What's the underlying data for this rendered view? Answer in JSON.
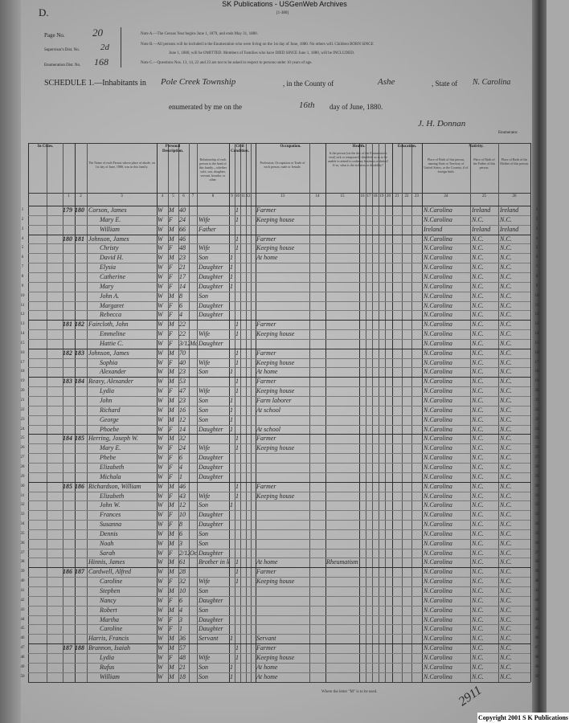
{
  "watermark": "SK Publications - USGenWeb Archives",
  "sheet_letter": "D.",
  "sheet_tag": "[1-380]",
  "header": {
    "page_label": "Page No.",
    "page_value": "20",
    "supervisor_label": "Supervisor's Dist. No.",
    "supervisor_value": "2d",
    "enumeration_label": "Enumeration Dist. No.",
    "enumeration_value": "168",
    "notes": [
      "Note A.—The Census Year begins June 1, 1879, and ends May 31, 1880.",
      "Note B.—All persons will be included in the Enumeration who were living on the 1st day of June, 1880. No others will. Children BORN SINCE",
      "June 1, 1880, will be OMITTED. Members of Families who have DIED SINCE June 1, 1880, will be INCLUDED.",
      "Note C.—Questions Nos. 13, 14, 22 and 23 are not to be asked in respect to persons under 10 years of age."
    ],
    "schedule_label": "SCHEDULE 1.—Inhabitants in",
    "township": "Pole Creek Township",
    "county_label": ", in the County of",
    "county": "Ashe",
    "state_label": ", State of",
    "state": "N. Carolina",
    "enumerated_label": "enumerated by me on the",
    "day": "16th",
    "month_label": "day of June, 1880.",
    "signature": "J. H. Donnan",
    "enumerator_label": "Enumerator."
  },
  "column_groups": [
    "In Cities.",
    "Personal Description.",
    "Civil Condition.",
    "Occupation.",
    "Health.",
    "Education.",
    "Nativity."
  ],
  "column_numbers": [
    "1",
    "2",
    "3",
    "4",
    "5",
    "6",
    "7",
    "8",
    "9",
    "10",
    "11",
    "12",
    "13",
    "14",
    "15",
    "16",
    "17",
    "18",
    "19",
    "20",
    "21",
    "22",
    "23",
    "24",
    "25",
    "26"
  ],
  "column_headers": {
    "name": "The Name of each Person whose place of abode, on 1st day of June, 1880, was in this family.",
    "relationship": "Relationship of each person to the head of this family—whether wife, son, daughter, servant, boarder, or other.",
    "occupation": "Profession, Occupation or Trade of each person, male or female.",
    "health": "Is the person [on the day of the Enumerator's visit] sick or temporarily disabled, so as to be unable to attend to ordinary business or duties? If so, what is the sickness or disability?",
    "birthplace": "Place of Birth of this person, naming State or Territory of United States, or the Country, if of foreign birth.",
    "father_birth": "Place of Birth of the Father of this person.",
    "mother_birth": "Place of Birth of the Mother of this person."
  },
  "rows": [
    [
      "179",
      "180",
      "Corson, James",
      "W",
      "M",
      "40",
      "",
      "",
      "",
      "1",
      "Farmer",
      "",
      "N.Carolina",
      "Ireland",
      "Ireland"
    ],
    [
      "",
      "",
      "Mary E.",
      "W",
      "F",
      "24",
      "",
      "Wife",
      "",
      "1",
      "Keeping house",
      "",
      "N.Carolina",
      "N.C.",
      "N.C."
    ],
    [
      "",
      "",
      "William",
      "W",
      "M",
      "66",
      "",
      "Father",
      "",
      "",
      "",
      "",
      "Ireland",
      "Ireland",
      "Ireland"
    ],
    [
      "180",
      "181",
      "Johnson, James",
      "W",
      "M",
      "46",
      "",
      "",
      "",
      "1",
      "Farmer",
      "",
      "N.Carolina",
      "N.C.",
      "N.C."
    ],
    [
      "",
      "",
      "Christy",
      "W",
      "F",
      "48",
      "",
      "Wife",
      "",
      "1",
      "Keeping house",
      "",
      "N.Carolina",
      "N.C.",
      "N.C."
    ],
    [
      "",
      "",
      "David H.",
      "W",
      "M",
      "23",
      "",
      "Son",
      "1",
      "",
      "At home",
      "",
      "N.Carolina",
      "N.C.",
      "N.C."
    ],
    [
      "",
      "",
      "Elysia",
      "W",
      "F",
      "21",
      "",
      "Daughter",
      "1",
      "",
      "",
      "",
      "N.Carolina",
      "N.C.",
      "N.C."
    ],
    [
      "",
      "",
      "Catherine",
      "W",
      "F",
      "17",
      "",
      "Daughter",
      "1",
      "",
      "",
      "",
      "N.Carolina",
      "N.C.",
      "N.C."
    ],
    [
      "",
      "",
      "Mary",
      "W",
      "F",
      "14",
      "",
      "Daughter",
      "1",
      "",
      "",
      "",
      "N.Carolina",
      "N.C.",
      "N.C."
    ],
    [
      "",
      "",
      "John A.",
      "W",
      "M",
      "8",
      "",
      "Son",
      "",
      "",
      "",
      "",
      "N.Carolina",
      "N.C.",
      "N.C."
    ],
    [
      "",
      "",
      "Margaret",
      "W",
      "F",
      "6",
      "",
      "Daughter",
      "",
      "",
      "",
      "",
      "N.Carolina",
      "N.C.",
      "N.C."
    ],
    [
      "",
      "",
      "Rebecca",
      "W",
      "F",
      "4",
      "",
      "Daughter",
      "",
      "",
      "",
      "",
      "N.Carolina",
      "N.C.",
      "N.C."
    ],
    [
      "181",
      "182",
      "Faircloth, John",
      "W",
      "M",
      "22",
      "",
      "",
      "",
      "1",
      "Farmer",
      "",
      "N.Carolina",
      "N.C.",
      "N.C."
    ],
    [
      "",
      "",
      "Emmeline",
      "W",
      "F",
      "22",
      "",
      "Wife",
      "",
      "1",
      "Keeping house",
      "",
      "N.Carolina",
      "N.C.",
      "N.C."
    ],
    [
      "",
      "",
      "Hattie C.",
      "W",
      "F",
      "3/12",
      "Mar",
      "Daughter",
      "",
      "",
      "",
      "",
      "N.Carolina",
      "N.C.",
      "N.C."
    ],
    [
      "182",
      "183",
      "Johnson, James",
      "W",
      "M",
      "70",
      "",
      "",
      "",
      "1",
      "Farmer",
      "",
      "N.Carolina",
      "N.C.",
      "N.C."
    ],
    [
      "",
      "",
      "Sophia",
      "W",
      "F",
      "40",
      "",
      "Wife",
      "",
      "1",
      "Keeping house",
      "",
      "N.Carolina",
      "N.C.",
      "N.C."
    ],
    [
      "",
      "",
      "Alexander",
      "W",
      "M",
      "23",
      "",
      "Son",
      "1",
      "",
      "At home",
      "",
      "N.Carolina",
      "N.C.",
      "N.C."
    ],
    [
      "183",
      "184",
      "Reavy, Alexander",
      "W",
      "M",
      "53",
      "",
      "",
      "",
      "1",
      "Farmer",
      "",
      "N.Carolina",
      "N.C.",
      "N.C."
    ],
    [
      "",
      "",
      "Lydia",
      "W",
      "F",
      "47",
      "",
      "Wife",
      "",
      "1",
      "Keeping house",
      "",
      "N.Carolina",
      "N.C.",
      "N.C."
    ],
    [
      "",
      "",
      "John",
      "W",
      "M",
      "23",
      "",
      "Son",
      "1",
      "",
      "Farm laborer",
      "",
      "N.Carolina",
      "N.C.",
      "N.C."
    ],
    [
      "",
      "",
      "Richard",
      "W",
      "M",
      "16",
      "",
      "Son",
      "1",
      "",
      "At school",
      "",
      "N.Carolina",
      "N.C.",
      "N.C."
    ],
    [
      "",
      "",
      "George",
      "W",
      "M",
      "12",
      "",
      "Son",
      "1",
      "",
      "",
      "",
      "N.Carolina",
      "N.C.",
      "N.C."
    ],
    [
      "",
      "",
      "Phoebe",
      "W",
      "F",
      "14",
      "",
      "Daughter",
      "1",
      "",
      "At school",
      "",
      "N.Carolina",
      "N.C.",
      "N.C."
    ],
    [
      "184",
      "185",
      "Herring, Joseph W.",
      "W",
      "M",
      "32",
      "",
      "",
      "",
      "1",
      "Farmer",
      "",
      "N.Carolina",
      "N.C.",
      "N.C."
    ],
    [
      "",
      "",
      "Mary E.",
      "W",
      "F",
      "24",
      "",
      "Wife",
      "",
      "1",
      "Keeping house",
      "",
      "N.Carolina",
      "N.C.",
      "N.C."
    ],
    [
      "",
      "",
      "Phebe",
      "W",
      "F",
      "6",
      "",
      "Daughter",
      "",
      "",
      "",
      "",
      "N.Carolina",
      "N.C.",
      "N.C."
    ],
    [
      "",
      "",
      "Elizabeth",
      "W",
      "F",
      "4",
      "",
      "Daughter",
      "",
      "",
      "",
      "",
      "N.Carolina",
      "N.C.",
      "N.C."
    ],
    [
      "",
      "",
      "Michala",
      "W",
      "F",
      "1",
      "",
      "Daughter",
      "",
      "",
      "",
      "",
      "N.Carolina",
      "N.C.",
      "N.C."
    ],
    [
      "185",
      "186",
      "Richardson, William",
      "W",
      "M",
      "46",
      "",
      "",
      "",
      "1",
      "Farmer",
      "",
      "N.Carolina",
      "N.C.",
      "N.C."
    ],
    [
      "",
      "",
      "Elizabeth",
      "W",
      "F",
      "43",
      "",
      "Wife",
      "",
      "1",
      "Keeping house",
      "",
      "N.Carolina",
      "N.C.",
      "N.C."
    ],
    [
      "",
      "",
      "John W.",
      "W",
      "M",
      "12",
      "",
      "Son",
      "1",
      "",
      "",
      "",
      "N.Carolina",
      "N.C.",
      "N.C."
    ],
    [
      "",
      "",
      "Frances",
      "W",
      "F",
      "10",
      "",
      "Daughter",
      "",
      "",
      "",
      "",
      "N.Carolina",
      "N.C.",
      "N.C."
    ],
    [
      "",
      "",
      "Susanna",
      "W",
      "F",
      "8",
      "",
      "Daughter",
      "",
      "",
      "",
      "",
      "N.Carolina",
      "N.C.",
      "N.C."
    ],
    [
      "",
      "",
      "Dennis",
      "W",
      "M",
      "6",
      "",
      "Son",
      "",
      "",
      "",
      "",
      "N.Carolina",
      "N.C.",
      "N.C."
    ],
    [
      "",
      "",
      "Noah",
      "W",
      "M",
      "3",
      "",
      "Son",
      "",
      "",
      "",
      "",
      "N.Carolina",
      "N.C.",
      "N.C."
    ],
    [
      "",
      "",
      "Sarah",
      "W",
      "F",
      "2/12",
      "Oct",
      "Daughter",
      "",
      "",
      "",
      "",
      "N.Carolina",
      "N.C.",
      "N.C."
    ],
    [
      "",
      "",
      "Hinnis, James",
      "W",
      "M",
      "61",
      "",
      "Brother in law",
      "",
      "1",
      "At home",
      "Rheumatism",
      "N.Carolina",
      "N.C.",
      "N.C."
    ],
    [
      "186",
      "187",
      "Cardwell, Alfred",
      "W",
      "M",
      "28",
      "",
      "",
      "",
      "1",
      "Farmer",
      "",
      "N.Carolina",
      "N.C.",
      "N.C."
    ],
    [
      "",
      "",
      "Caroline",
      "W",
      "F",
      "32",
      "",
      "Wife",
      "",
      "1",
      "Keeping house",
      "",
      "N.Carolina",
      "N.C.",
      "N.C."
    ],
    [
      "",
      "",
      "Stephen",
      "W",
      "M",
      "10",
      "",
      "Son",
      "",
      "",
      "",
      "",
      "N.Carolina",
      "N.C.",
      "N.C."
    ],
    [
      "",
      "",
      "Nancy",
      "W",
      "F",
      "6",
      "",
      "Daughter",
      "",
      "",
      "",
      "",
      "N.Carolina",
      "N.C.",
      "N.C."
    ],
    [
      "",
      "",
      "Robert",
      "W",
      "M",
      "4",
      "",
      "Son",
      "",
      "",
      "",
      "",
      "N.Carolina",
      "N.C.",
      "N.C."
    ],
    [
      "",
      "",
      "Martha",
      "W",
      "F",
      "3",
      "",
      "Daughter",
      "",
      "",
      "",
      "",
      "N.Carolina",
      "N.C.",
      "N.C."
    ],
    [
      "",
      "",
      "Caroline",
      "W",
      "F",
      "1",
      "",
      "Daughter",
      "",
      "",
      "",
      "",
      "N.Carolina",
      "N.C.",
      "N.C."
    ],
    [
      "",
      "",
      "Harris, Francis",
      "W",
      "M",
      "36",
      "",
      "Servant",
      "1",
      "",
      "Servant",
      "",
      "N.Carolina",
      "N.C.",
      "N.C."
    ],
    [
      "187",
      "188",
      "Brannon, Isaiah",
      "W",
      "M",
      "57",
      "",
      "",
      "",
      "1",
      "Farmer",
      "",
      "N.Carolina",
      "N.C.",
      "N.C."
    ],
    [
      "",
      "",
      "Lydia",
      "W",
      "F",
      "48",
      "",
      "Wife",
      "",
      "1",
      "Keeping house",
      "",
      "N.Carolina",
      "N.C.",
      "N.C."
    ],
    [
      "",
      "",
      "Rufus",
      "W",
      "M",
      "21",
      "",
      "Son",
      "1",
      "",
      "At home",
      "",
      "N.Carolina",
      "N.C.",
      "N.C."
    ],
    [
      "",
      "",
      "William",
      "W",
      "M",
      "18",
      "",
      "Son",
      "1",
      "",
      "At home",
      "",
      "N.Carolina",
      "N.C.",
      "N.C."
    ]
  ],
  "footer_note": "Where the letter \"M\" is to be used.",
  "stamp_mark": "2911",
  "copyright": "Copyright 2001 S K Publications"
}
